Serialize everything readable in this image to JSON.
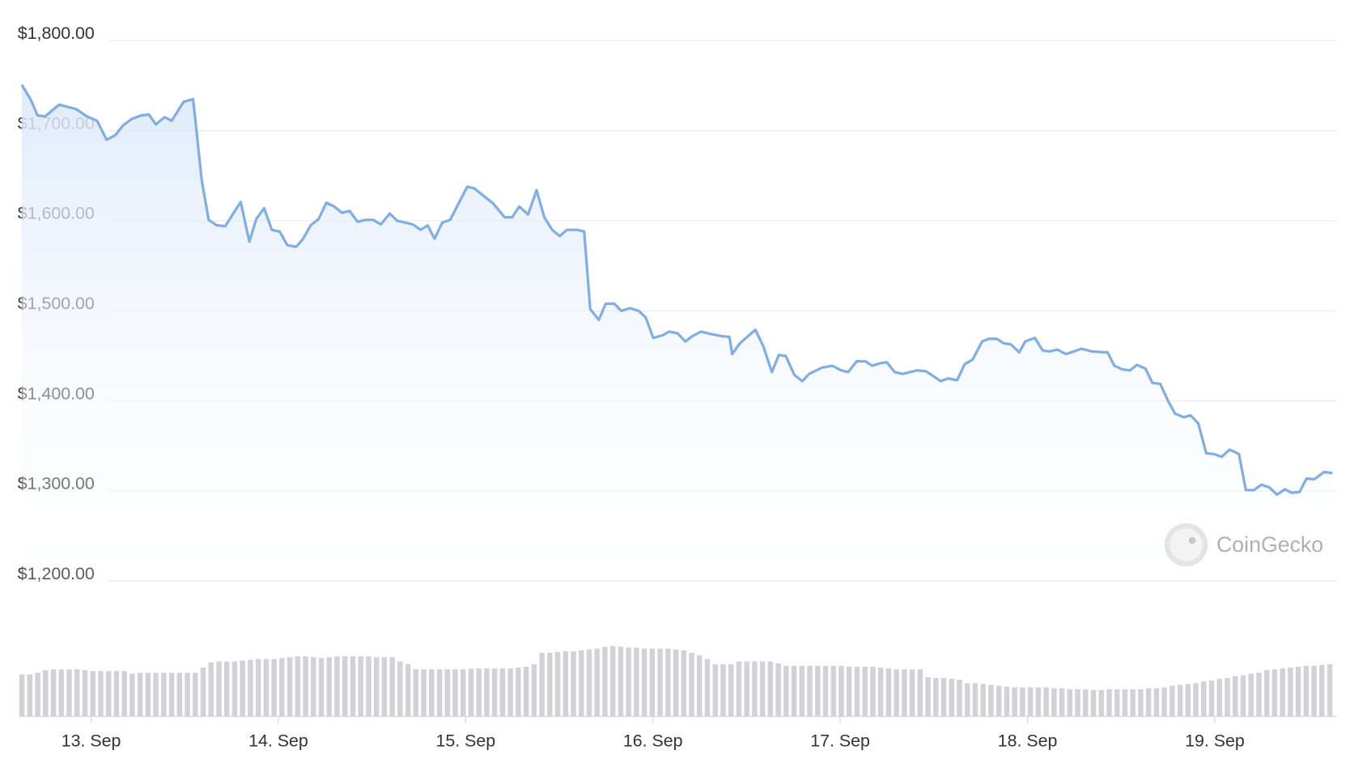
{
  "chart_data": {
    "type": "line",
    "watermark": "CoinGecko",
    "x": [
      12.63,
      12.677,
      12.714,
      12.755,
      12.829,
      12.921,
      12.977,
      13.032,
      13.083,
      13.129,
      13.171,
      13.217,
      13.268,
      13.309,
      13.346,
      13.393,
      13.43,
      13.494,
      13.545,
      13.591,
      13.628,
      13.67,
      13.716,
      13.799,
      13.845,
      13.882,
      13.924,
      13.965,
      14.007,
      14.048,
      14.095,
      14.132,
      14.173,
      14.215,
      14.256,
      14.298,
      14.339,
      14.381,
      14.423,
      14.464,
      14.506,
      14.547,
      14.594,
      14.635,
      14.718,
      14.76,
      14.797,
      14.834,
      14.875,
      14.917,
      15.009,
      15.046,
      15.148,
      15.208,
      15.249,
      15.286,
      15.333,
      15.379,
      15.42,
      15.462,
      15.503,
      15.54,
      15.596,
      15.633,
      15.665,
      15.711,
      15.748,
      15.794,
      15.831,
      15.878,
      15.924,
      15.961,
      16.002,
      16.053,
      16.085,
      16.132,
      16.173,
      16.21,
      16.256,
      16.316,
      16.367,
      16.409,
      16.423,
      16.464,
      16.547,
      16.589,
      16.635,
      16.672,
      16.709,
      16.755,
      16.797,
      16.834,
      16.903,
      16.958,
      17.005,
      17.042,
      17.088,
      17.134,
      17.171,
      17.217,
      17.249,
      17.291,
      17.333,
      17.411,
      17.457,
      17.494,
      17.536,
      17.577,
      17.624,
      17.665,
      17.707,
      17.758,
      17.794,
      17.836,
      17.873,
      17.91,
      17.956,
      17.988,
      18.039,
      18.081,
      18.118,
      18.159,
      18.206,
      18.247,
      18.289,
      18.344,
      18.404,
      18.427,
      18.464,
      18.506,
      18.547,
      18.584,
      18.63,
      18.667,
      18.709,
      18.751,
      18.788,
      18.834,
      18.871,
      18.912,
      18.954,
      18.995,
      19.037,
      19.079,
      19.129,
      19.166,
      19.208,
      19.249,
      19.291,
      19.333,
      19.374,
      19.411,
      19.453,
      19.49,
      19.531,
      19.582,
      19.628
    ],
    "series": [
      {
        "color": "#80ade6",
        "values": [
          1751,
          1735,
          1717,
          1716,
          1729,
          1724,
          1716,
          1711,
          1690,
          1695,
          1706,
          1713,
          1717,
          1718,
          1707,
          1715,
          1711,
          1732,
          1735,
          1645,
          1601,
          1595,
          1594,
          1621,
          1577,
          1602,
          1614,
          1590,
          1588,
          1573,
          1571,
          1580,
          1595,
          1602,
          1620,
          1616,
          1609,
          1611,
          1599,
          1601,
          1601,
          1596,
          1608,
          1600,
          1596,
          1590,
          1595,
          1580,
          1598,
          1601,
          1638,
          1636,
          1619,
          1604,
          1604,
          1616,
          1607,
          1634,
          1604,
          1590,
          1583,
          1590,
          1590,
          1588,
          1502,
          1490,
          1508,
          1508,
          1500,
          1503,
          1500,
          1493,
          1470,
          1473,
          1477,
          1475,
          1466,
          1472,
          1477,
          1474,
          1472,
          1471,
          1452,
          1464,
          1479,
          1461,
          1432,
          1451,
          1450,
          1429,
          1422,
          1430,
          1437,
          1439,
          1434,
          1432,
          1444,
          1444,
          1439,
          1442,
          1443,
          1432,
          1430,
          1434,
          1433,
          1428,
          1422,
          1425,
          1423,
          1441,
          1446,
          1466,
          1469,
          1469,
          1464,
          1463,
          1454,
          1466,
          1470,
          1456,
          1455,
          1457,
          1452,
          1455,
          1458,
          1455,
          1454,
          1454,
          1439,
          1435,
          1434,
          1440,
          1436,
          1420,
          1419,
          1400,
          1386,
          1382,
          1384,
          1375,
          1342,
          1341,
          1338,
          1346,
          1341,
          1301,
          1301,
          1307,
          1304,
          1296,
          1302,
          1298,
          1299,
          1314,
          1313,
          1321,
          1320
        ]
      }
    ],
    "xlim": [
      12.617,
      19.651
    ],
    "ylim": [
      1200,
      1800
    ],
    "xticks": [
      {
        "value": 13,
        "label": "13. Sep"
      },
      {
        "value": 14,
        "label": "14. Sep"
      },
      {
        "value": 15,
        "label": "15. Sep"
      },
      {
        "value": 16,
        "label": "16. Sep"
      },
      {
        "value": 17,
        "label": "17. Sep"
      },
      {
        "value": 18,
        "label": "18. Sep"
      },
      {
        "value": 19,
        "label": "19. Sep"
      }
    ],
    "yticks": [
      {
        "value": 1200,
        "label": "$1,200.00"
      },
      {
        "value": 1300,
        "label": "$1,300.00"
      },
      {
        "value": 1400,
        "label": "$1,400.00"
      },
      {
        "value": 1500,
        "label": "$1,500.00"
      },
      {
        "value": 1600,
        "label": "$1,600.00"
      },
      {
        "value": 1700,
        "label": "$1,700.00"
      },
      {
        "value": 1800,
        "label": "$1,800.00"
      }
    ],
    "grid": true,
    "volume": {
      "color": "#d2d2d6",
      "ylim": [
        0,
        100
      ],
      "values": [
        48,
        48,
        50,
        53,
        54,
        54,
        54,
        54,
        53,
        52,
        52,
        52,
        52,
        52,
        49,
        50,
        50,
        50,
        50,
        50,
        50,
        50,
        50,
        56,
        62,
        63,
        63,
        63,
        64,
        65,
        66,
        66,
        66,
        67,
        68,
        69,
        69,
        68,
        67,
        68,
        69,
        69,
        69,
        69,
        69,
        68,
        68,
        68,
        63,
        60,
        54,
        54,
        54,
        54,
        54,
        54,
        54,
        55,
        55,
        55,
        55,
        55,
        55,
        56,
        57,
        60,
        73,
        73,
        74,
        75,
        75,
        76,
        77,
        78,
        80,
        81,
        80,
        79,
        79,
        78,
        78,
        78,
        78,
        77,
        76,
        73,
        70,
        66,
        60,
        60,
        60,
        63,
        63,
        63,
        63,
        63,
        61,
        58,
        58,
        58,
        58,
        58,
        58,
        58,
        58,
        57,
        57,
        57,
        57,
        56,
        55,
        54,
        54,
        54,
        54,
        45,
        44,
        44,
        43,
        42,
        38,
        38,
        37,
        36,
        35,
        34,
        33,
        33,
        33,
        33,
        33,
        32,
        32,
        31,
        31,
        31,
        30,
        30,
        31,
        31,
        31,
        31,
        31,
        32,
        32,
        33,
        35,
        36,
        37,
        38,
        40,
        41,
        43,
        44,
        46,
        47,
        49,
        50,
        53,
        54,
        55,
        56,
        57,
        58,
        58,
        59,
        60
      ]
    }
  }
}
